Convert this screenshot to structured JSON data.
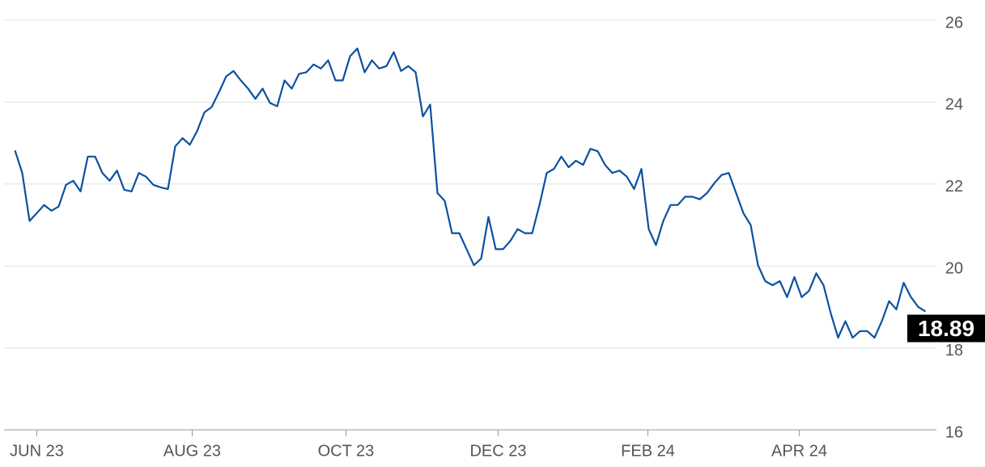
{
  "chart_data": {
    "type": "line",
    "values": [
      22.82,
      22.27,
      21.1,
      21.29,
      21.49,
      21.35,
      21.45,
      21.98,
      22.08,
      21.82,
      22.67,
      22.67,
      22.27,
      22.08,
      22.33,
      21.86,
      21.82,
      22.27,
      22.18,
      21.98,
      21.92,
      21.88,
      22.92,
      23.12,
      22.96,
      23.29,
      23.75,
      23.88,
      24.24,
      24.63,
      24.76,
      24.53,
      24.33,
      24.08,
      24.33,
      23.98,
      23.9,
      24.53,
      24.33,
      24.69,
      24.73,
      24.92,
      24.82,
      25.02,
      24.53,
      24.53,
      25.12,
      25.31,
      24.73,
      25.02,
      24.82,
      24.88,
      25.22,
      24.76,
      24.88,
      24.73,
      23.65,
      23.94,
      21.78,
      21.59,
      20.8,
      20.8,
      20.41,
      20.02,
      20.18,
      21.2,
      20.41,
      20.41,
      20.61,
      20.9,
      20.8,
      20.8,
      21.49,
      22.27,
      22.37,
      22.67,
      22.41,
      22.57,
      22.47,
      22.86,
      22.8,
      22.47,
      22.27,
      22.33,
      22.18,
      21.88,
      22.37,
      20.9,
      20.51,
      21.1,
      21.49,
      21.49,
      21.69,
      21.69,
      21.63,
      21.78,
      22.02,
      22.22,
      22.27,
      21.78,
      21.29,
      21.0,
      20.02,
      19.63,
      19.53,
      19.63,
      19.24,
      19.73,
      19.24,
      19.39,
      19.82,
      19.53,
      18.84,
      18.25,
      18.65,
      18.25,
      18.41,
      18.41,
      18.25,
      18.65,
      19.14,
      18.94,
      19.59,
      19.24,
      19.0,
      18.89
    ],
    "color": "#0b51a1",
    "xlim": [
      -1.5,
      126.5
    ],
    "xticks": [
      {
        "value": 3,
        "label": "JUN 23"
      },
      {
        "value": 24.33,
        "label": "AUG 23"
      },
      {
        "value": 45.44,
        "label": "OCT 23"
      },
      {
        "value": 66.33,
        "label": "DEC 23"
      },
      {
        "value": 86.89,
        "label": "FEB 24"
      },
      {
        "value": 107.67,
        "label": "APR 24"
      }
    ],
    "ylim": [
      16,
      26
    ],
    "yticks": [
      16,
      18,
      20,
      22,
      24,
      26
    ],
    "grid": true
  }
}
